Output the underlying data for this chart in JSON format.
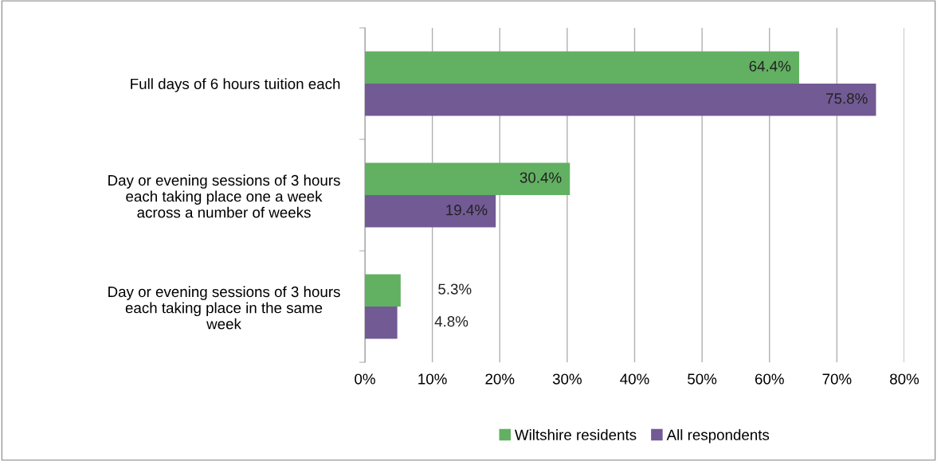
{
  "chart_data": {
    "type": "bar",
    "orientation": "horizontal",
    "categories": [
      "Full days of 6 hours tuition each",
      "Day or evening sessions of 3 hours\neach taking place one a week\nacross a number of weeks",
      "Day or evening sessions of 3 hours\neach taking place in the same\nweek"
    ],
    "series": [
      {
        "name": "Wiltshire residents",
        "color": "#62b062",
        "values": [
          64.4,
          30.4,
          5.3
        ],
        "value_labels": [
          "64.4%",
          "30.4%",
          "5.3%"
        ]
      },
      {
        "name": "All respondents",
        "color": "#725a94",
        "values": [
          75.8,
          19.4,
          4.8
        ],
        "value_labels": [
          "75.8%",
          "19.4%",
          "4.8%"
        ]
      }
    ],
    "xlim": [
      0,
      80
    ],
    "xticks": [
      {
        "value": 0,
        "label": "0%"
      },
      {
        "value": 10,
        "label": "10%"
      },
      {
        "value": 20,
        "label": "20%"
      },
      {
        "value": 30,
        "label": "30%"
      },
      {
        "value": 40,
        "label": "40%"
      },
      {
        "value": 50,
        "label": "50%"
      },
      {
        "value": 60,
        "label": "60%"
      },
      {
        "value": 70,
        "label": "70%"
      },
      {
        "value": 80,
        "label": "80%"
      }
    ],
    "grid": "x",
    "legend": "bottom"
  }
}
